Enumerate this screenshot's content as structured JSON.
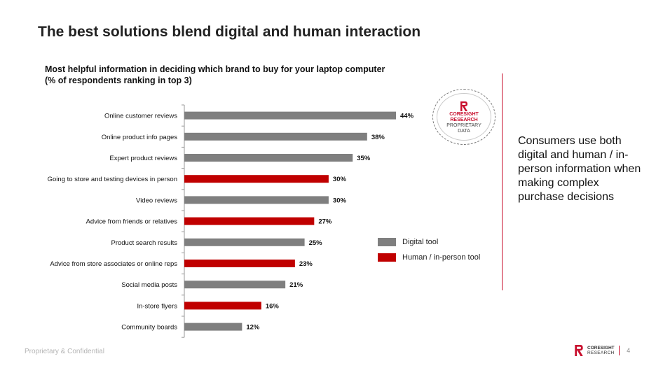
{
  "slide": {
    "title": "The best solutions blend digital and human interaction",
    "callout": "Consumers use both digital and human / in-person information when making complex purchase decisions"
  },
  "badge": {
    "brand_line1": "CORESIGHT",
    "brand_line2": "RESEARCH",
    "caption_line1": "PROPRIETARY",
    "caption_line2": "DATA"
  },
  "footer": {
    "confidential": "Proprietary & Confidential",
    "brand_line1": "CORESIGHT",
    "brand_line2": "RESEARCH",
    "page_number": "4"
  },
  "colors": {
    "digital": "#7f7f7f",
    "human": "#c00000",
    "accent": "#c8102e"
  },
  "chart_data": {
    "type": "bar",
    "orientation": "horizontal",
    "title_line1": "Most helpful information in deciding which brand to buy for your laptop computer",
    "title_line2": "(% of respondents ranking in top 3)",
    "categories": [
      "Online customer reviews",
      "Online product info pages",
      "Expert product reviews",
      "Going to store and testing devices in person",
      "Video reviews",
      "Advice from friends or relatives",
      "Product search results",
      "Advice from store associates or online reps",
      "Social media posts",
      "In-store flyers",
      "Community boards"
    ],
    "values": [
      44,
      38,
      35,
      30,
      30,
      27,
      25,
      23,
      21,
      16,
      12
    ],
    "labels": [
      "44%",
      "38%",
      "35%",
      "30%",
      "30%",
      "27%",
      "25%",
      "23%",
      "21%",
      "16%",
      "12%"
    ],
    "group": [
      "digital",
      "digital",
      "digital",
      "human",
      "digital",
      "human",
      "digital",
      "human",
      "digital",
      "human",
      "digital"
    ],
    "legend": [
      {
        "key": "digital",
        "label": "Digital tool"
      },
      {
        "key": "human",
        "label": "Human / in-person tool"
      }
    ],
    "xlim": [
      0,
      50
    ],
    "grid": false,
    "legend_position": "right"
  }
}
